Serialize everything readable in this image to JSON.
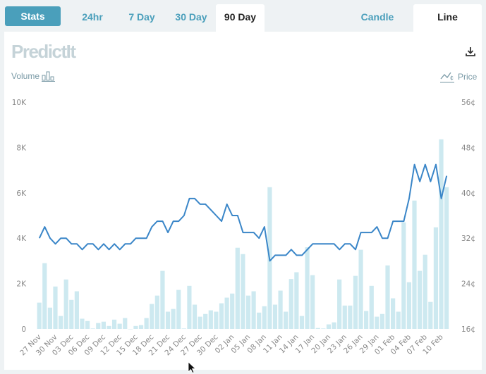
{
  "tabs": {
    "stats": "Stats",
    "range": [
      "24hr",
      "7 Day",
      "30 Day",
      "90 Day"
    ],
    "active_range": "90 Day",
    "chart_type": [
      "Candle",
      "Line"
    ],
    "active_type": "Line"
  },
  "logo": "PredictIt",
  "legend": {
    "volume": "Volume",
    "price": "Price"
  },
  "icons": {
    "download": "download-icon",
    "volume": "bar-chart-icon",
    "price": "line-cent-icon"
  },
  "colors": {
    "accent": "#4a9fbb",
    "line": "#3a86c8",
    "bar": "#cde9f0"
  },
  "chart_data": {
    "type": "bar+line",
    "left_axis": {
      "label": "Volume",
      "ticks": [
        "0",
        "2K",
        "4K",
        "6K",
        "8K",
        "10K"
      ],
      "range": [
        0,
        10000
      ]
    },
    "right_axis": {
      "label": "Price",
      "ticks": [
        "16¢",
        "24¢",
        "32¢",
        "40¢",
        "48¢",
        "56¢"
      ],
      "range": [
        16,
        56
      ]
    },
    "x_labels": [
      "27 Nov",
      "30 Nov",
      "03 Dec",
      "06 Dec",
      "09 Dec",
      "12 Dec",
      "15 Dec",
      "18 Dec",
      "21 Dec",
      "24 Dec",
      "27 Dec",
      "30 Dec",
      "02 Jan",
      "05 Jan",
      "08 Jan",
      "11 Jan",
      "14 Jan",
      "17 Jan",
      "20 Jan",
      "23 Jan",
      "26 Jan",
      "29 Jan",
      "01 Feb",
      "04 Feb",
      "07 Feb",
      "10 Feb"
    ],
    "x_label_every": 3,
    "volume": [
      1160,
      2900,
      940,
      1870,
      570,
      2180,
      1280,
      1660,
      450,
      350,
      20,
      260,
      320,
      130,
      410,
      230,
      480,
      0,
      130,
      170,
      480,
      1100,
      1470,
      2560,
      760,
      880,
      1720,
      20,
      1900,
      1070,
      540,
      660,
      820,
      760,
      1130,
      1380,
      1560,
      3580,
      3300,
      1470,
      1660,
      720,
      1000,
      6250,
      1070,
      1690,
      760,
      2200,
      2500,
      570,
      3600,
      2370,
      40,
      20,
      200,
      290,
      2180,
      1030,
      1030,
      2340,
      3490,
      790,
      1900,
      540,
      660,
      2800,
      1350,
      760,
      4700,
      2060,
      5660,
      2560,
      3270,
      1190,
      4480,
      8360,
      6250
    ],
    "price": [
      32,
      34,
      32,
      31,
      32,
      32,
      31,
      31,
      30,
      31,
      31,
      30,
      31,
      30,
      31,
      30,
      31,
      31,
      32,
      32,
      32,
      34,
      35,
      35,
      33,
      35,
      35,
      36,
      39,
      39,
      38,
      38,
      37,
      36,
      35,
      38,
      36,
      36,
      33,
      33,
      33,
      32,
      34,
      28,
      29,
      29,
      29,
      30,
      29,
      29,
      30,
      31,
      31,
      31,
      31,
      31,
      30,
      31,
      31,
      30,
      33,
      33,
      33,
      34,
      32,
      32,
      35,
      35,
      35,
      39,
      45,
      42,
      45,
      42,
      45,
      39,
      43
    ]
  }
}
